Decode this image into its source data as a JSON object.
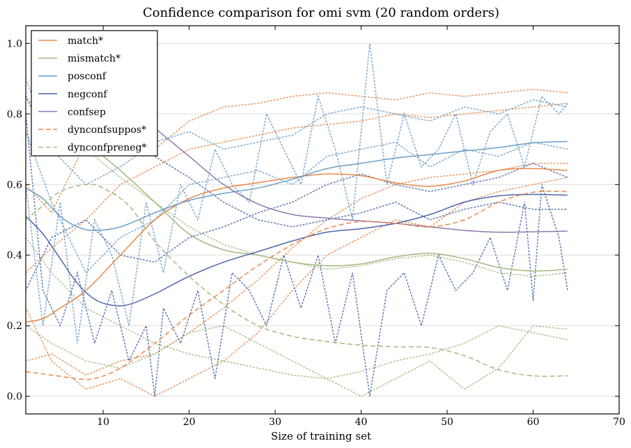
{
  "chart_data": {
    "type": "line",
    "title": "Confidence comparison for omi svm (20 random orders)",
    "xlabel": "Size of training set",
    "ylabel": "",
    "xlim": [
      1,
      70
    ],
    "ylim": [
      -0.05,
      1.05
    ],
    "xticks": [
      10,
      20,
      30,
      40,
      50,
      60,
      70
    ],
    "yticks": [
      0.0,
      0.2,
      0.4,
      0.6,
      0.8,
      1.0
    ],
    "grid": "horizontal",
    "legend_position": "top-left",
    "series": [
      {
        "name": "match*",
        "color": "#e8894a",
        "style": "solid",
        "x": [
          1,
          3,
          5,
          8,
          12,
          16,
          20,
          24,
          28,
          32,
          36,
          40,
          44,
          48,
          52,
          56,
          60,
          64
        ],
        "values": [
          0.21,
          0.22,
          0.25,
          0.3,
          0.4,
          0.5,
          0.56,
          0.59,
          0.605,
          0.62,
          0.63,
          0.625,
          0.605,
          0.595,
          0.61,
          0.64,
          0.645,
          0.64
        ]
      },
      {
        "name": "mismatch*",
        "color": "#a3b97e",
        "style": "solid",
        "x": [
          8,
          12,
          16,
          20,
          24,
          28,
          32,
          36,
          40,
          44,
          48,
          52,
          56,
          60,
          64
        ],
        "values": [
          0.72,
          0.64,
          0.55,
          0.46,
          0.415,
          0.4,
          0.38,
          0.37,
          0.375,
          0.395,
          0.405,
          0.39,
          0.365,
          0.355,
          0.36
        ]
      },
      {
        "name": "posconf",
        "color": "#6a9ec9",
        "style": "solid",
        "x": [
          1,
          3,
          5,
          7,
          9,
          12,
          16,
          20,
          24,
          28,
          32,
          36,
          40,
          44,
          48,
          52,
          56,
          60,
          64
        ],
        "values": [
          0.59,
          0.56,
          0.51,
          0.48,
          0.47,
          0.48,
          0.52,
          0.555,
          0.575,
          0.59,
          0.615,
          0.645,
          0.66,
          0.675,
          0.685,
          0.695,
          0.705,
          0.718,
          0.722
        ]
      },
      {
        "name": "negconf",
        "color": "#4a67ad",
        "style": "solid",
        "x": [
          1,
          3,
          5,
          7,
          9,
          11,
          13,
          16,
          20,
          24,
          28,
          32,
          36,
          40,
          44,
          48,
          52,
          56,
          60,
          64
        ],
        "values": [
          0.51,
          0.46,
          0.39,
          0.32,
          0.275,
          0.258,
          0.26,
          0.29,
          0.34,
          0.38,
          0.41,
          0.44,
          0.465,
          0.475,
          0.49,
          0.515,
          0.55,
          0.568,
          0.572,
          0.57
        ]
      },
      {
        "name": "confsep",
        "color": "#8a7aad",
        "style": "solid",
        "x": [
          16,
          20,
          24,
          28,
          32,
          36,
          40,
          44,
          48,
          52,
          56,
          60,
          64
        ],
        "values": [
          0.76,
          0.68,
          0.6,
          0.545,
          0.515,
          0.505,
          0.497,
          0.49,
          0.48,
          0.47,
          0.465,
          0.466,
          0.468
        ]
      },
      {
        "name": "dynconfsuppos*",
        "color": "#e8894a",
        "style": "dashed",
        "x": [
          1,
          4,
          7,
          9,
          12,
          16,
          20,
          24,
          28,
          32,
          36,
          40,
          44,
          48,
          52,
          56,
          60,
          64
        ],
        "values": [
          0.07,
          0.06,
          0.05,
          0.05,
          0.08,
          0.15,
          0.23,
          0.3,
          0.37,
          0.43,
          0.475,
          0.495,
          0.49,
          0.48,
          0.5,
          0.55,
          0.578,
          0.58
        ]
      },
      {
        "name": "dynconfpreneg*",
        "color": "#a3b97e",
        "style": "dashed",
        "x": [
          1,
          3,
          5,
          8,
          10,
          13,
          16,
          20,
          24,
          28,
          32,
          36,
          40,
          44,
          48,
          52,
          56,
          60,
          64
        ],
        "values": [
          0.5,
          0.54,
          0.58,
          0.6,
          0.59,
          0.54,
          0.44,
          0.34,
          0.26,
          0.2,
          0.17,
          0.155,
          0.145,
          0.14,
          0.138,
          0.115,
          0.075,
          0.058,
          0.058
        ]
      }
    ],
    "background_traces": [
      {
        "color": "#e8894a",
        "x": [
          1,
          4,
          8,
          12,
          16,
          20,
          24,
          28,
          32,
          36,
          40,
          44,
          48,
          52,
          56,
          60,
          64
        ],
        "values": [
          0.6,
          0.52,
          0.72,
          0.75,
          0.7,
          0.78,
          0.82,
          0.83,
          0.85,
          0.86,
          0.85,
          0.84,
          0.86,
          0.85,
          0.86,
          0.87,
          0.86
        ]
      },
      {
        "color": "#e8894a",
        "x": [
          1,
          4,
          8,
          12,
          16,
          20,
          24,
          28,
          32,
          36,
          40,
          44,
          48,
          52,
          56,
          60,
          64
        ],
        "values": [
          0.25,
          0.1,
          0.02,
          0.05,
          0.0,
          0.05,
          0.1,
          0.18,
          0.3,
          0.4,
          0.45,
          0.5,
          0.48,
          0.55,
          0.58,
          0.6,
          0.62
        ]
      },
      {
        "color": "#e8894a",
        "x": [
          1,
          4,
          8,
          12,
          16,
          20,
          24,
          28,
          32,
          36,
          40,
          44,
          48,
          52,
          56,
          60,
          64
        ],
        "values": [
          0.1,
          0.12,
          0.06,
          0.1,
          0.12,
          0.18,
          0.25,
          0.33,
          0.42,
          0.5,
          0.56,
          0.6,
          0.62,
          0.63,
          0.64,
          0.66,
          0.66
        ]
      },
      {
        "color": "#e8894a",
        "x": [
          1,
          4,
          8,
          12,
          16,
          20,
          24,
          28,
          32,
          36,
          40,
          44,
          48,
          52,
          56,
          60,
          64
        ],
        "values": [
          0.35,
          0.42,
          0.5,
          0.6,
          0.65,
          0.7,
          0.72,
          0.74,
          0.76,
          0.77,
          0.78,
          0.8,
          0.79,
          0.8,
          0.81,
          0.82,
          0.83
        ]
      },
      {
        "color": "#a3b97e",
        "x": [
          1,
          4,
          8,
          12,
          16,
          20,
          24,
          28,
          32,
          36,
          40,
          44,
          48,
          52,
          56,
          60,
          64
        ],
        "values": [
          0.85,
          0.75,
          0.7,
          0.62,
          0.55,
          0.48,
          0.43,
          0.4,
          0.38,
          0.36,
          0.37,
          0.39,
          0.4,
          0.38,
          0.35,
          0.34,
          0.35
        ]
      },
      {
        "color": "#a3b97e",
        "x": [
          1,
          4,
          8,
          12,
          16,
          20,
          24,
          28,
          32,
          36,
          40,
          44,
          48,
          52,
          56,
          60,
          64
        ],
        "values": [
          0.45,
          0.35,
          0.25,
          0.2,
          0.15,
          0.12,
          0.1,
          0.08,
          0.06,
          0.05,
          0.07,
          0.1,
          0.12,
          0.15,
          0.2,
          0.18,
          0.16
        ]
      },
      {
        "color": "#a3b97e",
        "x": [
          1,
          4,
          8,
          12,
          16,
          20,
          24,
          28,
          32,
          36,
          40,
          44,
          48,
          52,
          56,
          60,
          64
        ],
        "values": [
          0.2,
          0.15,
          0.1,
          0.08,
          0.12,
          0.18,
          0.2,
          0.15,
          0.1,
          0.05,
          0.0,
          0.05,
          0.1,
          0.02,
          0.08,
          0.2,
          0.19
        ]
      },
      {
        "color": "#6a9ec9",
        "x": [
          1,
          3,
          5,
          7,
          9,
          11,
          13,
          15,
          17,
          19,
          21,
          23,
          25,
          27,
          29,
          31,
          33,
          35,
          37,
          39,
          41,
          43,
          45,
          47,
          49,
          51,
          53,
          55,
          57,
          59,
          61,
          63,
          64
        ],
        "values": [
          0.6,
          0.2,
          0.55,
          0.15,
          0.5,
          0.4,
          0.2,
          0.55,
          0.35,
          0.6,
          0.5,
          0.7,
          0.6,
          0.55,
          0.8,
          0.7,
          0.6,
          0.85,
          0.7,
          0.5,
          1.0,
          0.6,
          0.8,
          0.65,
          0.7,
          0.8,
          0.6,
          0.75,
          0.8,
          0.65,
          0.85,
          0.8,
          0.83
        ]
      },
      {
        "color": "#6a9ec9",
        "x": [
          1,
          4,
          8,
          12,
          16,
          20,
          24,
          28,
          32,
          36,
          40,
          44,
          48,
          52,
          56,
          60,
          64
        ],
        "values": [
          0.9,
          0.7,
          0.6,
          0.65,
          0.72,
          0.75,
          0.7,
          0.72,
          0.74,
          0.8,
          0.82,
          0.8,
          0.78,
          0.82,
          0.8,
          0.84,
          0.82
        ]
      },
      {
        "color": "#6a9ec9",
        "x": [
          1,
          4,
          8,
          12,
          16,
          20,
          24,
          28,
          32,
          36,
          40,
          44,
          48,
          52,
          56,
          60,
          64
        ],
        "values": [
          0.75,
          0.55,
          0.35,
          0.45,
          0.5,
          0.6,
          0.62,
          0.64,
          0.6,
          0.68,
          0.7,
          0.72,
          0.65,
          0.7,
          0.68,
          0.72,
          0.7
        ]
      },
      {
        "color": "#4a67ad",
        "x": [
          1,
          3,
          5,
          7,
          9,
          11,
          13,
          15,
          16,
          17,
          19,
          21,
          23,
          25,
          27,
          29,
          31,
          33,
          35,
          37,
          39,
          41,
          43,
          45,
          47,
          49,
          51,
          53,
          55,
          57,
          59,
          60,
          61,
          63,
          64
        ],
        "values": [
          0.8,
          0.3,
          0.2,
          0.35,
          0.15,
          0.3,
          0.1,
          0.2,
          0.0,
          0.25,
          0.15,
          0.3,
          0.05,
          0.35,
          0.3,
          0.2,
          0.4,
          0.25,
          0.4,
          0.15,
          0.35,
          0.0,
          0.3,
          0.35,
          0.2,
          0.4,
          0.3,
          0.35,
          0.45,
          0.3,
          0.55,
          0.27,
          0.6,
          0.45,
          0.3
        ]
      },
      {
        "color": "#4a67ad",
        "x": [
          1,
          4,
          8,
          12,
          16,
          20,
          24,
          28,
          32,
          36,
          40,
          44,
          48,
          52,
          56,
          60,
          64
        ],
        "values": [
          0.85,
          0.7,
          0.8,
          0.75,
          0.68,
          0.62,
          0.55,
          0.5,
          0.48,
          0.5,
          0.52,
          0.55,
          0.5,
          0.53,
          0.55,
          0.53,
          0.53
        ]
      },
      {
        "color": "#4a67ad",
        "x": [
          1,
          4,
          8,
          12,
          16,
          20,
          24,
          28,
          32,
          36,
          40,
          44,
          48,
          52,
          56,
          60,
          64
        ],
        "values": [
          0.3,
          0.45,
          0.5,
          0.4,
          0.38,
          0.45,
          0.48,
          0.52,
          0.55,
          0.6,
          0.63,
          0.6,
          0.58,
          0.6,
          0.62,
          0.66,
          0.62
        ]
      }
    ]
  }
}
